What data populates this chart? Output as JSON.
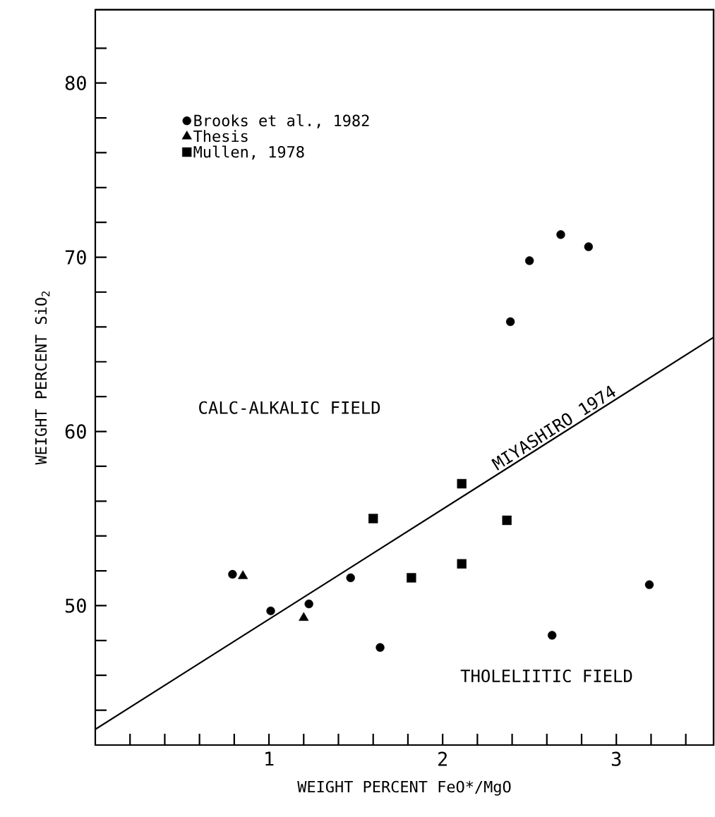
{
  "chart_data": {
    "type": "scatter",
    "xlabel": "WEIGHT PERCENT FeO*/MgO",
    "ylabel": "WEIGHT PERCENT SiO$_{2}$",
    "xlim": [
      0,
      3.56
    ],
    "ylim": [
      42,
      84.2
    ],
    "xticks": [
      {
        "value": 0.2,
        "label": null
      },
      {
        "value": 0.4,
        "label": null
      },
      {
        "value": 0.6,
        "label": null
      },
      {
        "value": 0.8,
        "label": null
      },
      1,
      {
        "value": 1.2,
        "label": null
      },
      {
        "value": 1.4,
        "label": null
      },
      {
        "value": 1.6,
        "label": null
      },
      {
        "value": 1.8,
        "label": null
      },
      2,
      {
        "value": 2.2,
        "label": null
      },
      {
        "value": 2.4,
        "label": null
      },
      {
        "value": 2.6,
        "label": null
      },
      {
        "value": 2.8,
        "label": null
      },
      3,
      {
        "value": 3.2,
        "label": null
      },
      {
        "value": 3.4,
        "label": null
      }
    ],
    "yticks": [
      {
        "value": 44,
        "label": null
      },
      {
        "value": 46,
        "label": null
      },
      {
        "value": 48,
        "label": null
      },
      50,
      {
        "value": 52,
        "label": null
      },
      {
        "value": 54,
        "label": null
      },
      {
        "value": 56,
        "label": null
      },
      {
        "value": 58,
        "label": null
      },
      60,
      {
        "value": 62,
        "label": null
      },
      {
        "value": 64,
        "label": null
      },
      {
        "value": 66,
        "label": null
      },
      {
        "value": 68,
        "label": null
      },
      70,
      {
        "value": 72,
        "label": null
      },
      {
        "value": 74,
        "label": null
      },
      {
        "value": 76,
        "label": null
      },
      {
        "value": 78,
        "label": null
      },
      80,
      {
        "value": 82,
        "label": null
      }
    ],
    "legend": "top left",
    "series": [
      {
        "name": "Brooks et al., 1982",
        "marker": "circle",
        "color": "#000000",
        "x": [
          0.79,
          1.01,
          1.23,
          1.47,
          1.64,
          2.39,
          2.5,
          2.68,
          2.84,
          2.63,
          3.19
        ],
        "values": [
          51.8,
          49.7,
          50.1,
          51.6,
          47.6,
          66.3,
          69.8,
          71.3,
          70.6,
          48.3,
          51.2
        ]
      },
      {
        "name": "Thesis",
        "marker": "triangle",
        "color": "#000000",
        "x": [
          0.85,
          1.2
        ],
        "values": [
          51.7,
          49.3
        ]
      },
      {
        "name": "Mullen, 1978",
        "marker": "square",
        "color": "#000000",
        "x": [
          1.6,
          1.82,
          2.11,
          2.11,
          2.37
        ],
        "values": [
          55.0,
          51.6,
          57.0,
          52.4,
          54.9
        ]
      },
      {
        "name": "MIYASHIRO 1974",
        "type": "line",
        "marker": "none",
        "color": "#000000",
        "x": [
          0,
          3.56
        ],
        "values": [
          42.9,
          65.4
        ]
      }
    ],
    "annotations": [
      "CALC-ALKALIC FIELD",
      "THOLELIITIC FIELD"
    ]
  }
}
